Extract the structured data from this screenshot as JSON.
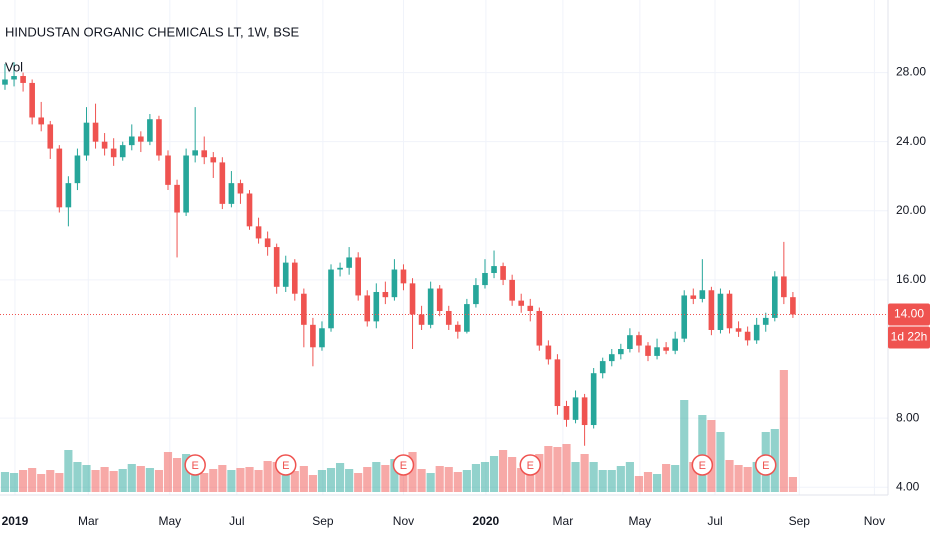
{
  "chart_data": {
    "type": "candlestick",
    "title": "HINDUSTAN ORGANIC CHEMICALS LT, 1W, BSE",
    "volume_label": "Vol",
    "up_color": "#26a69a",
    "down_color": "#ef5350",
    "grid": true,
    "xlim": [
      -0.55,
      97.5
    ],
    "ylim": [
      3.55,
      32.2
    ],
    "yticks": [
      {
        "value": 4,
        "label": "4.00"
      },
      {
        "value": 8,
        "label": "8.00"
      },
      {
        "value": 16,
        "label": "16.00"
      },
      {
        "value": 20,
        "label": "20.00"
      },
      {
        "value": 24,
        "label": "24.00"
      },
      {
        "value": 28,
        "label": "28.00"
      }
    ],
    "xticks": [
      {
        "value": 1.1,
        "label": "2019"
      },
      {
        "value": 9.2,
        "label": "Mar"
      },
      {
        "value": 18.2,
        "label": "May"
      },
      {
        "value": 25.6,
        "label": "Jul"
      },
      {
        "value": 35.1,
        "label": "Sep"
      },
      {
        "value": 44.0,
        "label": "Nov"
      },
      {
        "value": 53.1,
        "label": "2020"
      },
      {
        "value": 61.6,
        "label": "Mar"
      },
      {
        "value": 70.1,
        "label": "May"
      },
      {
        "value": 78.4,
        "label": "Jul"
      },
      {
        "value": 87.7,
        "label": "Sep"
      },
      {
        "value": 96.0,
        "label": "Nov"
      }
    ],
    "candles": [
      [
        27.3,
        28.5,
        27.0,
        27.6
      ],
      [
        27.6,
        28.6,
        27.2,
        27.8
      ],
      [
        27.8,
        28.0,
        26.9,
        27.4
      ],
      [
        27.4,
        27.6,
        25.0,
        25.4
      ],
      [
        25.4,
        26.3,
        24.6,
        25.0
      ],
      [
        25.0,
        25.2,
        23.0,
        23.6
      ],
      [
        23.6,
        23.8,
        19.9,
        20.2
      ],
      [
        20.2,
        22.0,
        19.1,
        21.6
      ],
      [
        21.6,
        23.6,
        21.2,
        23.2
      ],
      [
        23.2,
        26.0,
        22.9,
        25.1
      ],
      [
        25.1,
        26.2,
        23.6,
        24.0
      ],
      [
        24.0,
        24.5,
        23.2,
        23.6
      ],
      [
        23.6,
        24.2,
        22.6,
        23.1
      ],
      [
        23.1,
        24.0,
        22.9,
        23.8
      ],
      [
        23.8,
        25.0,
        23.5,
        24.3
      ],
      [
        24.3,
        24.6,
        23.4,
        24.0
      ],
      [
        24.0,
        25.6,
        23.8,
        25.3
      ],
      [
        25.3,
        25.5,
        22.9,
        23.2
      ],
      [
        23.2,
        23.5,
        21.2,
        21.5
      ],
      [
        21.5,
        21.8,
        17.3,
        19.9
      ],
      [
        19.9,
        23.6,
        19.7,
        23.2
      ],
      [
        23.2,
        26.0,
        22.8,
        23.5
      ],
      [
        23.5,
        24.3,
        22.7,
        23.1
      ],
      [
        23.1,
        23.4,
        21.9,
        22.8
      ],
      [
        22.8,
        23.1,
        20.1,
        20.4
      ],
      [
        20.4,
        22.3,
        20.2,
        21.6
      ],
      [
        21.6,
        21.8,
        20.4,
        21.0
      ],
      [
        21.0,
        21.2,
        18.9,
        19.1
      ],
      [
        19.1,
        19.6,
        18.1,
        18.4
      ],
      [
        18.4,
        18.8,
        17.4,
        17.9
      ],
      [
        17.9,
        18.1,
        15.2,
        15.6
      ],
      [
        15.6,
        17.4,
        15.3,
        17.0
      ],
      [
        17.0,
        17.2,
        14.8,
        15.2
      ],
      [
        15.2,
        15.5,
        12.1,
        13.4
      ],
      [
        13.4,
        13.8,
        11.0,
        12.1
      ],
      [
        12.1,
        13.6,
        11.9,
        13.2
      ],
      [
        13.2,
        16.9,
        13.0,
        16.6
      ],
      [
        16.6,
        17.0,
        16.2,
        16.7
      ],
      [
        16.7,
        17.9,
        16.3,
        17.3
      ],
      [
        17.3,
        17.6,
        14.8,
        15.1
      ],
      [
        15.1,
        15.4,
        13.3,
        13.6
      ],
      [
        13.6,
        15.8,
        13.2,
        15.3
      ],
      [
        15.3,
        15.9,
        14.6,
        15.0
      ],
      [
        15.0,
        17.2,
        14.8,
        16.6
      ],
      [
        16.6,
        16.9,
        15.4,
        15.8
      ],
      [
        15.8,
        16.1,
        12.0,
        14.0
      ],
      [
        14.0,
        14.5,
        13.1,
        13.4
      ],
      [
        13.4,
        15.9,
        13.2,
        15.5
      ],
      [
        15.5,
        15.7,
        13.9,
        14.2
      ],
      [
        14.2,
        14.5,
        13.1,
        13.4
      ],
      [
        13.4,
        13.6,
        12.6,
        13.0
      ],
      [
        13.0,
        14.9,
        12.9,
        14.6
      ],
      [
        14.6,
        16.1,
        14.4,
        15.7
      ],
      [
        15.7,
        17.2,
        15.5,
        16.4
      ],
      [
        16.4,
        17.7,
        16.1,
        16.8
      ],
      [
        16.8,
        17.0,
        15.7,
        16.0
      ],
      [
        16.0,
        16.3,
        14.5,
        14.8
      ],
      [
        14.8,
        15.2,
        14.1,
        14.5
      ],
      [
        14.5,
        14.9,
        13.6,
        14.2
      ],
      [
        14.2,
        14.4,
        11.9,
        12.2
      ],
      [
        12.2,
        12.5,
        11.1,
        11.4
      ],
      [
        11.4,
        11.7,
        8.2,
        8.7
      ],
      [
        8.7,
        9.0,
        7.5,
        7.9
      ],
      [
        7.9,
        9.6,
        7.7,
        9.2
      ],
      [
        9.2,
        9.4,
        6.4,
        7.6
      ],
      [
        7.6,
        10.9,
        7.4,
        10.6
      ],
      [
        10.6,
        11.5,
        10.3,
        11.3
      ],
      [
        11.3,
        12.0,
        11.0,
        11.7
      ],
      [
        11.7,
        12.3,
        11.4,
        12.0
      ],
      [
        12.0,
        13.2,
        11.8,
        12.8
      ],
      [
        12.8,
        13.0,
        11.8,
        12.2
      ],
      [
        12.2,
        12.4,
        11.3,
        11.6
      ],
      [
        11.6,
        12.6,
        11.4,
        12.1
      ],
      [
        12.1,
        12.4,
        11.7,
        11.9
      ],
      [
        11.9,
        13.0,
        11.7,
        12.6
      ],
      [
        12.6,
        15.4,
        12.4,
        15.1
      ],
      [
        15.1,
        15.5,
        14.6,
        14.9
      ],
      [
        14.9,
        17.2,
        14.7,
        15.4
      ],
      [
        15.4,
        15.6,
        12.8,
        13.1
      ],
      [
        13.1,
        15.5,
        12.9,
        15.2
      ],
      [
        15.2,
        15.4,
        12.9,
        13.2
      ],
      [
        13.2,
        13.6,
        12.7,
        13.0
      ],
      [
        13.0,
        13.3,
        12.2,
        12.5
      ],
      [
        12.5,
        13.8,
        12.3,
        13.4
      ],
      [
        13.4,
        14.1,
        13.0,
        13.8
      ],
      [
        13.8,
        16.5,
        13.6,
        16.2
      ],
      [
        16.2,
        18.2,
        14.6,
        15.0
      ],
      [
        15.0,
        15.3,
        13.8,
        14.0
      ]
    ],
    "volume": [
      20,
      19,
      22,
      24,
      18,
      22,
      19,
      42,
      30,
      27,
      22,
      25,
      21,
      23,
      28,
      26,
      24,
      22,
      40,
      34,
      38,
      20,
      19,
      23,
      27,
      22,
      24,
      25,
      22,
      31,
      30,
      24,
      21,
      26,
      17,
      22,
      24,
      29,
      23,
      19,
      25,
      30,
      27,
      33,
      29,
      40,
      23,
      19,
      26,
      25,
      20,
      22,
      28,
      30,
      36,
      42,
      35,
      24,
      30,
      38,
      46,
      45,
      48,
      30,
      38,
      30,
      22,
      22,
      26,
      30,
      16,
      20,
      18,
      28,
      27,
      92,
      30,
      77,
      72,
      60,
      32,
      27,
      25,
      30,
      60,
      63,
      122,
      15
    ],
    "earnings": {
      "label": "E",
      "weeks": [
        21,
        31,
        44,
        58,
        77,
        84
      ]
    },
    "last_price": {
      "value": 14,
      "label": "14.00"
    },
    "countdown": "1d 22h"
  }
}
